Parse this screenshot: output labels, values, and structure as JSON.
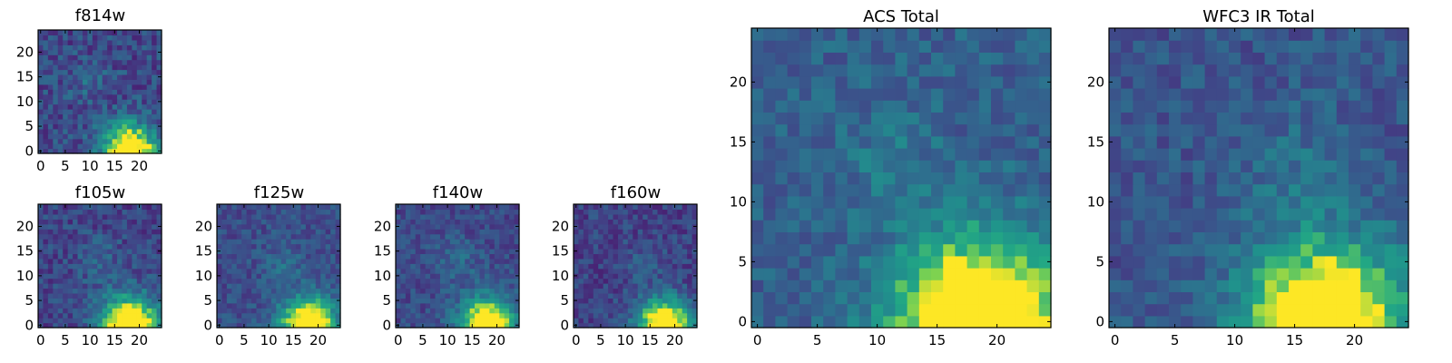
{
  "chart_data": [
    {
      "type": "heatmap",
      "title": "f814w",
      "xticks": [
        "0",
        "5",
        "10",
        "15",
        "20"
      ],
      "yticks": [
        "0",
        "5",
        "10",
        "15",
        "20"
      ],
      "xlim": [
        -0.5,
        24.5
      ],
      "ylim": [
        -0.5,
        24.5
      ],
      "grid_size": 25,
      "colormap": "viridis",
      "hot_spot": {
        "x": 18,
        "y": 0,
        "radius": 5.5,
        "peak": 1.0
      },
      "secondary_spot": {
        "x": 10,
        "y": 14,
        "radius": 4,
        "peak": 0.12
      },
      "background_level": 0.28,
      "noise_level": 0.16
    },
    {
      "type": "heatmap",
      "title": "f105w",
      "xticks": [
        "0",
        "5",
        "10",
        "15",
        "20"
      ],
      "yticks": [
        "0",
        "5",
        "10",
        "15",
        "20"
      ],
      "xlim": [
        -0.5,
        24.5
      ],
      "ylim": [
        -0.5,
        24.5
      ],
      "grid_size": 25,
      "colormap": "viridis",
      "hot_spot": {
        "x": 18,
        "y": 0,
        "radius": 6,
        "peak": 1.0
      },
      "secondary_spot": {
        "x": 12,
        "y": 13,
        "radius": 5,
        "peak": 0.12
      },
      "background_level": 0.26,
      "noise_level": 0.14
    },
    {
      "type": "heatmap",
      "title": "f125w",
      "xticks": [
        "0",
        "5",
        "10",
        "15",
        "20"
      ],
      "yticks": [
        "0",
        "5",
        "10",
        "15",
        "20"
      ],
      "xlim": [
        -0.5,
        24.5
      ],
      "ylim": [
        -0.5,
        24.5
      ],
      "grid_size": 25,
      "colormap": "viridis",
      "hot_spot": {
        "x": 18,
        "y": 0,
        "radius": 5.5,
        "peak": 1.0
      },
      "secondary_spot": {
        "x": 13,
        "y": 12,
        "radius": 4,
        "peak": 0.14
      },
      "background_level": 0.3,
      "noise_level": 0.12
    },
    {
      "type": "heatmap",
      "title": "f140w",
      "xticks": [
        "0",
        "5",
        "10",
        "15",
        "20"
      ],
      "yticks": [
        "0",
        "5",
        "10",
        "15",
        "20"
      ],
      "xlim": [
        -0.5,
        24.5
      ],
      "ylim": [
        -0.5,
        24.5
      ],
      "grid_size": 25,
      "colormap": "viridis",
      "hot_spot": {
        "x": 18,
        "y": 0,
        "radius": 5.5,
        "peak": 1.0
      },
      "secondary_spot": {
        "x": 12,
        "y": 13,
        "radius": 5,
        "peak": 0.13
      },
      "background_level": 0.28,
      "noise_level": 0.12
    },
    {
      "type": "heatmap",
      "title": "f160w",
      "xticks": [
        "0",
        "5",
        "10",
        "15",
        "20"
      ],
      "yticks": [
        "0",
        "5",
        "10",
        "15",
        "20"
      ],
      "xlim": [
        -0.5,
        24.5
      ],
      "ylim": [
        -0.5,
        24.5
      ],
      "grid_size": 25,
      "colormap": "viridis",
      "hot_spot": {
        "x": 18,
        "y": 0,
        "radius": 5.5,
        "peak": 1.0
      },
      "secondary_spot": {
        "x": 14,
        "y": 13,
        "radius": 4,
        "peak": 0.12
      },
      "background_level": 0.25,
      "noise_level": 0.13
    },
    {
      "type": "heatmap",
      "title": "ACS Total",
      "xticks": [
        "0",
        "5",
        "10",
        "15",
        "20"
      ],
      "yticks": [
        "0",
        "5",
        "10",
        "15",
        "20"
      ],
      "xlim": [
        -0.5,
        24.5
      ],
      "ylim": [
        -0.5,
        24.5
      ],
      "grid_size": 25,
      "colormap": "viridis",
      "hot_spot": {
        "x": 18.5,
        "y": 0,
        "radius": 7,
        "peak": 1.0
      },
      "secondary_spot": {
        "x": 11,
        "y": 14,
        "radius": 4,
        "peak": 0.12
      },
      "background_level": 0.38,
      "noise_level": 0.12
    },
    {
      "type": "heatmap",
      "title": "WFC3 IR Total",
      "xticks": [
        "0",
        "5",
        "10",
        "15",
        "20"
      ],
      "yticks": [
        "0",
        "5",
        "10",
        "15",
        "20"
      ],
      "xlim": [
        -0.5,
        24.5
      ],
      "ylim": [
        -0.5,
        24.5
      ],
      "grid_size": 25,
      "colormap": "viridis",
      "hot_spot": {
        "x": 17.5,
        "y": 0,
        "radius": 6.5,
        "peak": 1.0
      },
      "secondary_spot": {
        "x": 15,
        "y": 13,
        "radius": 5,
        "peak": 0.12
      },
      "background_level": 0.33,
      "noise_level": 0.12
    }
  ]
}
